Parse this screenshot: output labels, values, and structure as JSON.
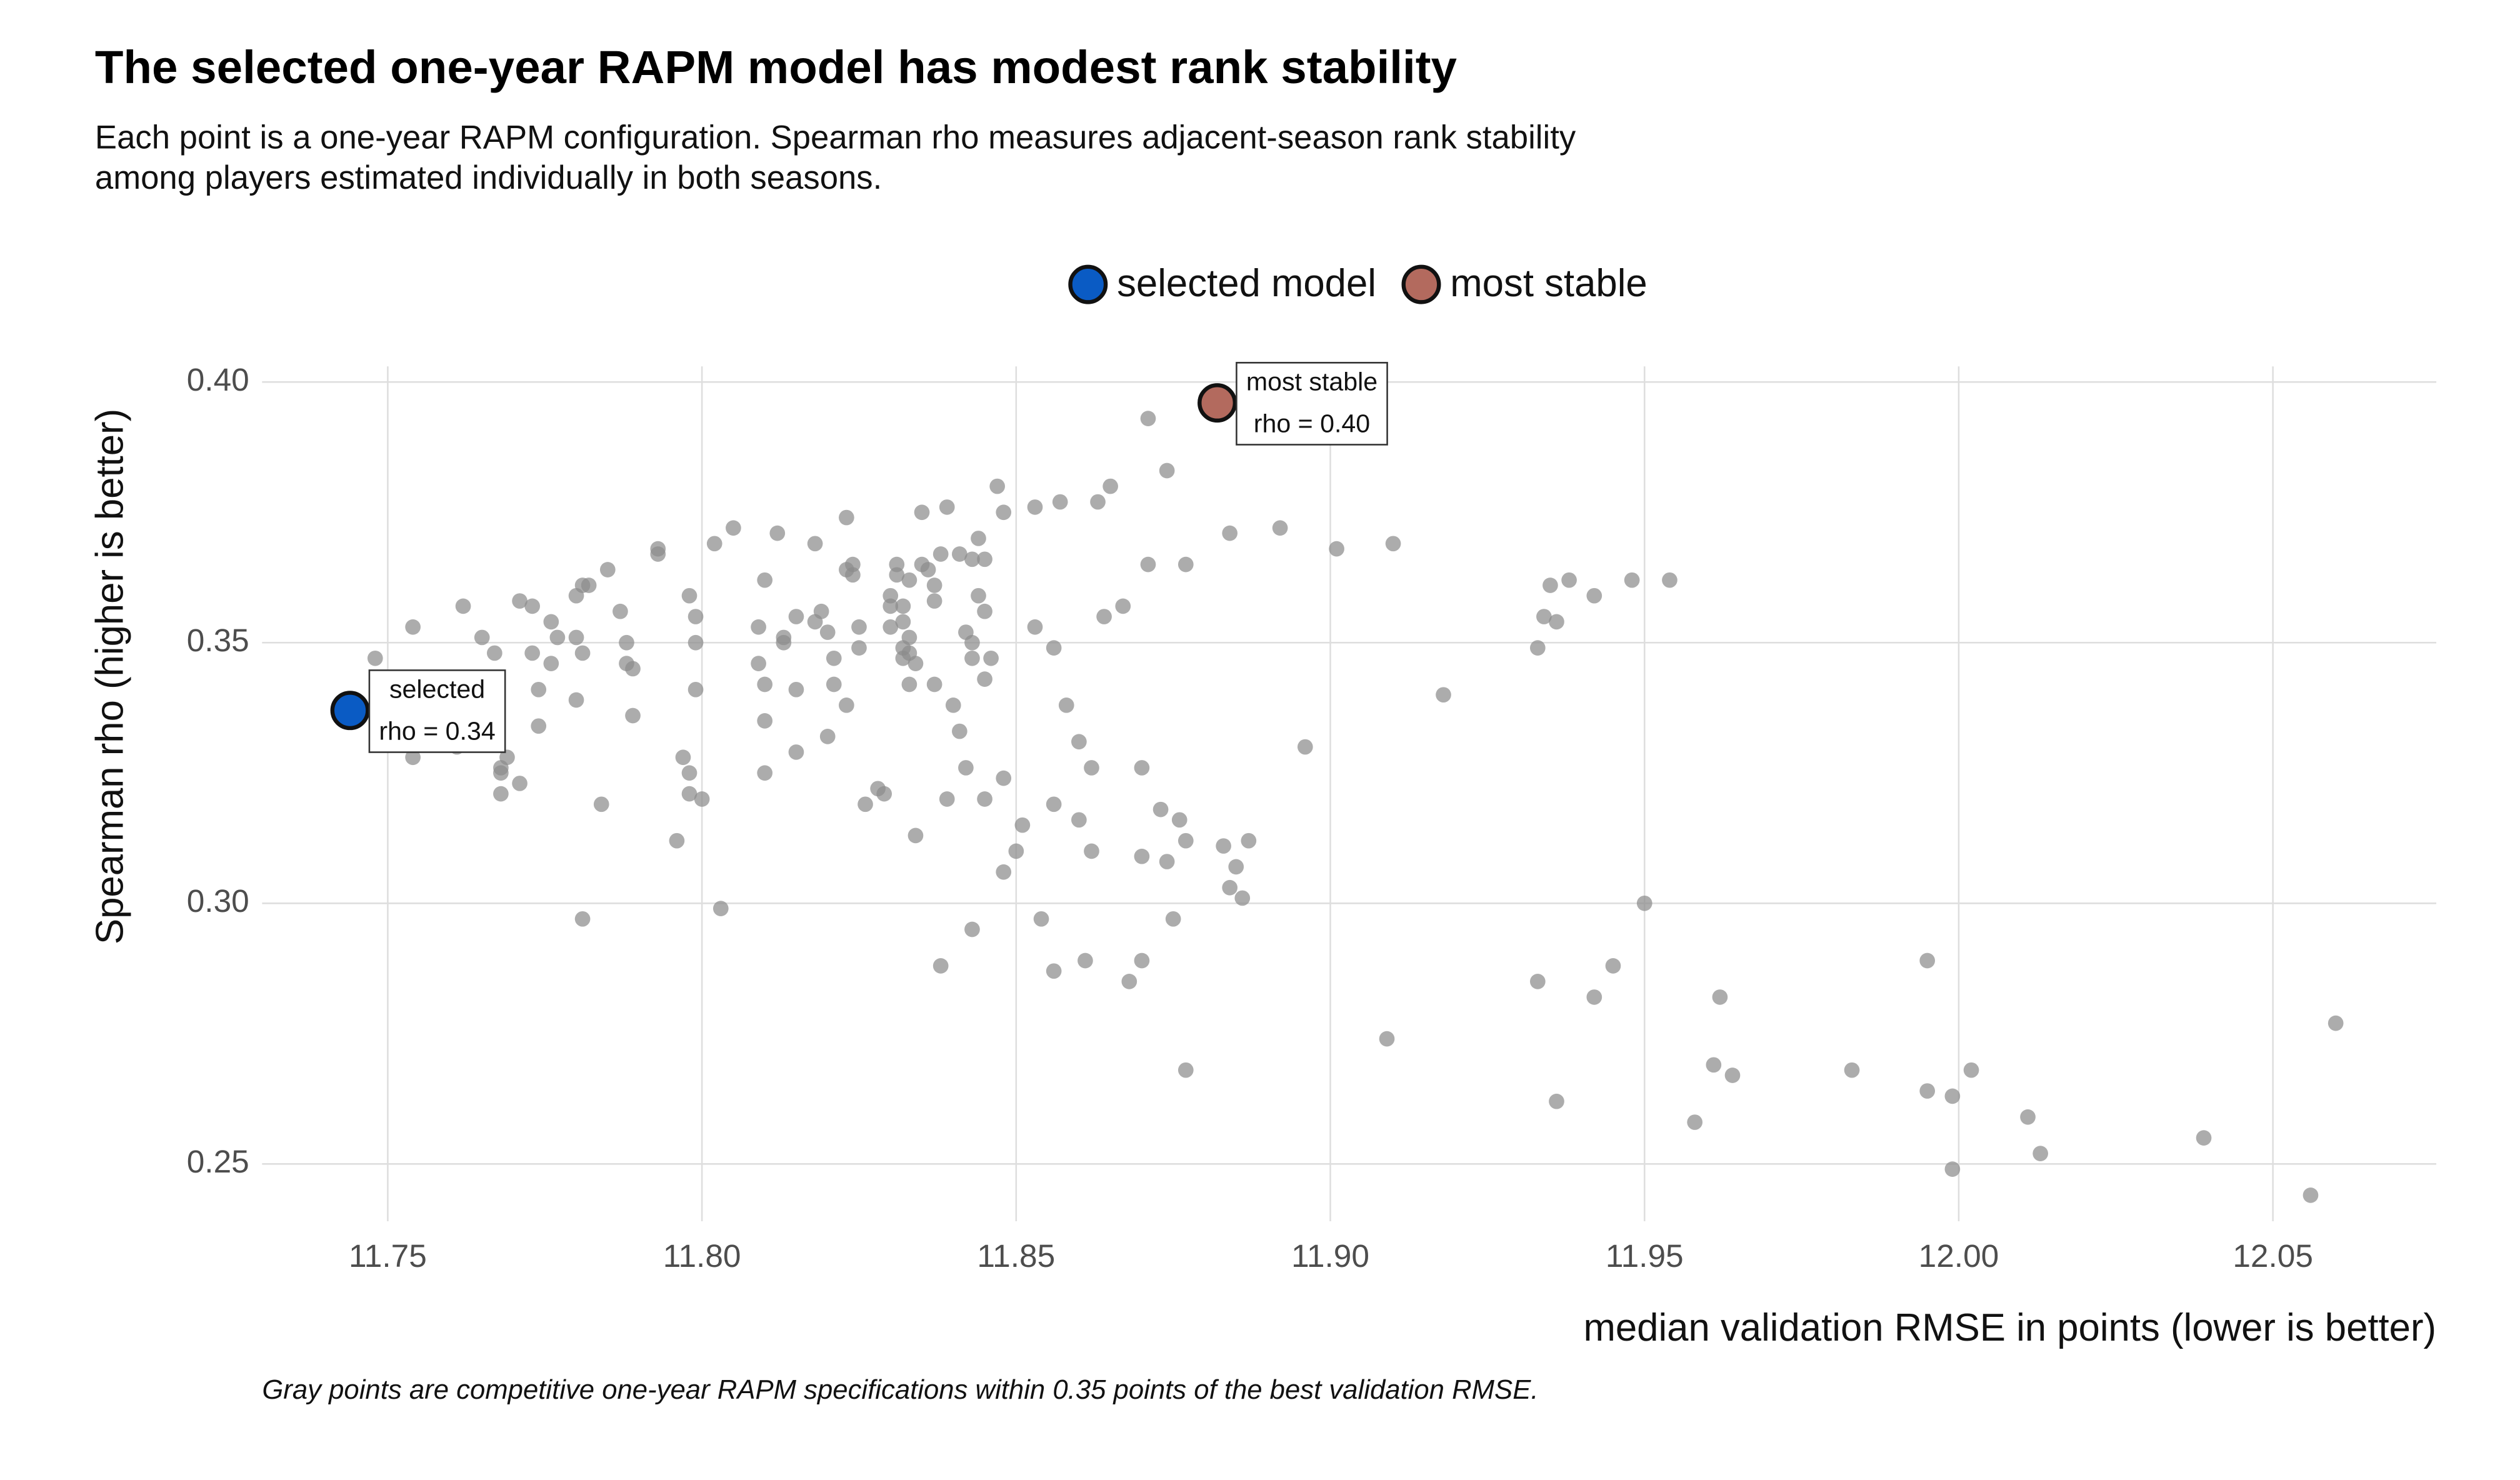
{
  "chart_data": {
    "type": "scatter",
    "title": "The selected one-year RAPM model has modest rank stability",
    "subtitle": [
      "Each point is a one-year RAPM configuration. Spearman rho measures adjacent-season rank stability",
      "among players estimated individually in both seasons."
    ],
    "x_label": "median validation RMSE in points (lower is better)",
    "y_label": "Spearman rho (higher is better)",
    "caption": "Gray points are competitive one-year RAPM specifications within 0.35 points of the best validation RMSE.",
    "xlim": [
      11.73,
      12.076
    ],
    "ylim": [
      0.239,
      0.403
    ],
    "xticks": [
      {
        "value": 11.75,
        "label": "11.75"
      },
      {
        "value": 11.8,
        "label": "11.80"
      },
      {
        "value": 11.85,
        "label": "11.85"
      },
      {
        "value": 11.9,
        "label": "11.90"
      },
      {
        "value": 11.95,
        "label": "11.95"
      },
      {
        "value": 12.0,
        "label": "12.00"
      },
      {
        "value": 12.05,
        "label": "12.05"
      }
    ],
    "yticks": [
      {
        "value": 0.25,
        "label": "0.25"
      },
      {
        "value": 0.3,
        "label": "0.30"
      },
      {
        "value": 0.35,
        "label": "0.35"
      },
      {
        "value": 0.4,
        "label": "0.40"
      }
    ],
    "grid": true,
    "legend_position": "top",
    "series": [
      {
        "color": "#8c8c8c",
        "x": [
          11.748,
          11.754,
          11.754,
          11.761,
          11.762,
          11.765,
          11.767,
          11.767,
          11.768,
          11.768,
          11.768,
          11.769,
          11.771,
          11.771,
          11.773,
          11.773,
          11.774,
          11.774,
          11.776,
          11.776,
          11.777,
          11.78,
          11.78,
          11.78,
          11.781,
          11.781,
          11.782,
          11.784,
          11.781,
          11.785,
          11.787,
          11.788,
          11.788,
          11.789,
          11.789,
          11.793,
          11.793,
          11.797,
          11.798,
          11.798,
          11.799,
          11.798,
          11.799,
          11.799,
          11.8,
          11.796,
          11.803,
          11.802,
          11.805,
          11.809,
          11.809,
          11.81,
          11.81,
          11.81,
          11.81,
          11.812,
          11.813,
          11.813,
          11.815,
          11.815,
          11.815,
          11.818,
          11.818,
          11.819,
          11.82,
          11.82,
          11.821,
          11.821,
          11.823,
          11.823,
          11.824,
          11.823,
          11.824,
          11.825,
          11.825,
          11.826,
          11.828,
          11.829,
          11.83,
          11.83,
          11.83,
          11.831,
          11.831,
          11.832,
          11.832,
          11.832,
          11.832,
          11.833,
          11.833,
          11.833,
          11.833,
          11.834,
          11.834,
          11.835,
          11.835,
          11.836,
          11.837,
          11.837,
          11.837,
          11.838,
          11.838,
          11.839,
          11.839,
          11.84,
          11.841,
          11.841,
          11.842,
          11.842,
          11.843,
          11.843,
          11.843,
          11.843,
          11.844,
          11.844,
          11.845,
          11.845,
          11.845,
          11.845,
          11.846,
          11.847,
          11.848,
          11.848,
          11.848,
          11.85,
          11.851,
          11.853,
          11.853,
          11.854,
          11.856,
          11.856,
          11.856,
          11.857,
          11.858,
          11.86,
          11.86,
          11.861,
          11.862,
          11.862,
          11.863,
          11.864,
          11.865,
          11.867,
          11.868,
          11.87,
          11.87,
          11.87,
          11.871,
          11.871,
          11.873,
          11.874,
          11.874,
          11.875,
          11.876,
          11.877,
          11.877,
          11.877,
          11.883,
          11.884,
          11.884,
          11.885,
          11.886,
          11.887,
          11.892,
          11.896,
          11.901,
          11.909,
          11.91,
          11.918,
          11.933,
          11.933,
          11.934,
          11.935,
          11.936,
          11.936,
          11.938,
          11.942,
          11.942,
          11.945,
          11.948,
          11.95,
          11.954,
          11.958,
          11.961,
          11.962,
          11.964,
          11.983,
          11.995,
          11.995,
          11.999,
          11.999,
          12.002,
          12.011,
          12.013,
          12.039,
          12.056,
          12.06
        ],
        "values": [
          0.347,
          0.353,
          0.328,
          0.33,
          0.357,
          0.351,
          0.348,
          0.331,
          0.325,
          0.321,
          0.326,
          0.328,
          0.323,
          0.358,
          0.357,
          0.348,
          0.341,
          0.334,
          0.354,
          0.346,
          0.351,
          0.359,
          0.351,
          0.339,
          0.348,
          0.361,
          0.361,
          0.319,
          0.297,
          0.364,
          0.356,
          0.35,
          0.346,
          0.336,
          0.345,
          0.367,
          0.368,
          0.328,
          0.321,
          0.325,
          0.355,
          0.359,
          0.35,
          0.341,
          0.32,
          0.312,
          0.299,
          0.369,
          0.372,
          0.353,
          0.346,
          0.342,
          0.335,
          0.325,
          0.362,
          0.371,
          0.351,
          0.35,
          0.341,
          0.355,
          0.329,
          0.354,
          0.369,
          0.356,
          0.332,
          0.352,
          0.347,
          0.342,
          0.364,
          0.374,
          0.365,
          0.338,
          0.363,
          0.353,
          0.349,
          0.319,
          0.322,
          0.321,
          0.357,
          0.353,
          0.359,
          0.365,
          0.363,
          0.349,
          0.347,
          0.357,
          0.354,
          0.348,
          0.342,
          0.362,
          0.351,
          0.346,
          0.313,
          0.375,
          0.365,
          0.364,
          0.342,
          0.358,
          0.361,
          0.288,
          0.367,
          0.376,
          0.32,
          0.338,
          0.333,
          0.367,
          0.326,
          0.352,
          0.366,
          0.347,
          0.295,
          0.35,
          0.359,
          0.37,
          0.366,
          0.356,
          0.343,
          0.32,
          0.347,
          0.38,
          0.375,
          0.306,
          0.324,
          0.31,
          0.315,
          0.376,
          0.353,
          0.297,
          0.287,
          0.349,
          0.319,
          0.377,
          0.338,
          0.316,
          0.331,
          0.289,
          0.326,
          0.31,
          0.377,
          0.355,
          0.38,
          0.357,
          0.285,
          0.289,
          0.326,
          0.309,
          0.393,
          0.365,
          0.318,
          0.308,
          0.383,
          0.297,
          0.316,
          0.312,
          0.365,
          0.268,
          0.311,
          0.371,
          0.303,
          0.307,
          0.301,
          0.312,
          0.372,
          0.33,
          0.368,
          0.274,
          0.369,
          0.34,
          0.349,
          0.285,
          0.355,
          0.361,
          0.262,
          0.354,
          0.362,
          0.282,
          0.359,
          0.288,
          0.362,
          0.3,
          0.362,
          0.258,
          0.269,
          0.282,
          0.267,
          0.268,
          0.289,
          0.264,
          0.263,
          0.249,
          0.268,
          0.259,
          0.252,
          0.255,
          0.244,
          0.277
        ]
      },
      {
        "name": "selected model",
        "color": "#0a5bc4",
        "x": [
          11.744
        ],
        "values": [
          0.337
        ],
        "annotation": [
          "selected",
          "rho = 0.34"
        ]
      },
      {
        "name": "most stable",
        "color": "#b36a5e",
        "x": [
          11.882
        ],
        "values": [
          0.396
        ],
        "annotation": [
          "most stable",
          "rho = 0.40"
        ]
      }
    ]
  }
}
